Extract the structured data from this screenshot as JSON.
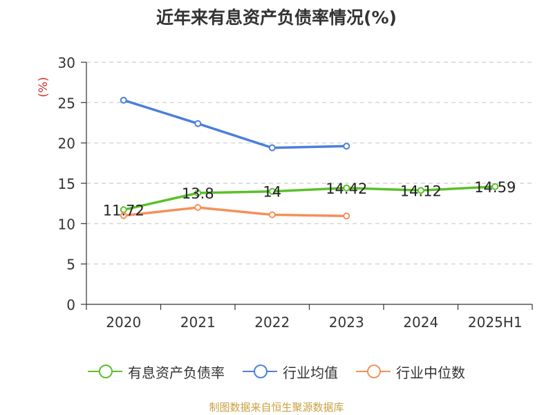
{
  "title": "近年来有息资产负债率情况(%)",
  "source_note": "制图数据来自恒生聚源数据库",
  "chart_data": {
    "type": "line",
    "title": "近年来有息资产负债率情况(%)",
    "ylabel": "(%)",
    "xlabel": "",
    "categories": [
      "2020",
      "2021",
      "2022",
      "2023",
      "2024",
      "2025H1"
    ],
    "ylim": [
      0,
      30
    ],
    "yticks": [
      0,
      5,
      10,
      15,
      20,
      25,
      30
    ],
    "grid": true,
    "legend_position": "bottom",
    "series": [
      {
        "name": "有息资产负债率",
        "color": "#5ac02a",
        "values": [
          11.72,
          13.8,
          14,
          14.42,
          14.12,
          14.59
        ],
        "show_labels": true
      },
      {
        "name": "行业均值",
        "color": "#4c7fdc",
        "values": [
          25.3,
          22.4,
          19.4,
          19.6,
          null,
          null
        ],
        "show_labels": false
      },
      {
        "name": "行业中位数",
        "color": "#f4905a",
        "values": [
          11.0,
          12.0,
          11.1,
          10.95,
          null,
          null
        ],
        "show_labels": false
      }
    ]
  }
}
